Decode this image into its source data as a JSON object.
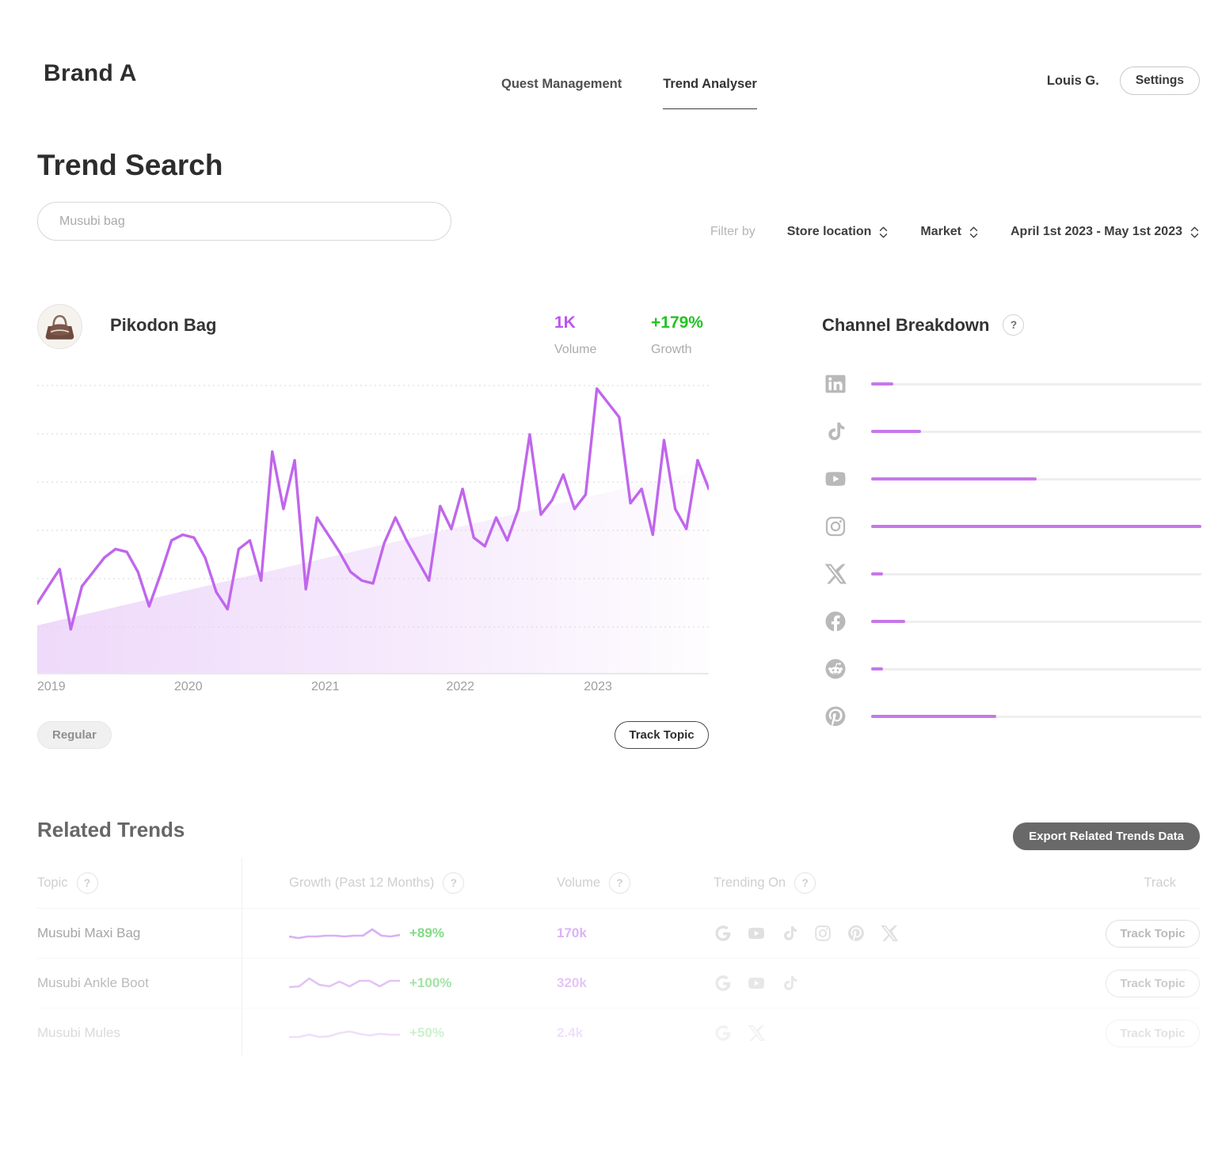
{
  "ui": {
    "help_glyph": "?"
  },
  "colors": {
    "line": "#c066ec",
    "area_left": "#e9cdf8",
    "bar_fill": "#c778e8",
    "stat_volume": "#bb54f0",
    "stat_growth": "#22c522",
    "row_growth": "#82db85",
    "row_volume": "#dcb2f6",
    "sparkline": "#d9b0f4"
  },
  "header": {
    "brand": "Brand A",
    "nav": [
      {
        "label": "Quest Management",
        "active": false
      },
      {
        "label": "Trend Analyser",
        "active": true
      }
    ],
    "user": "Louis G.",
    "settings_label": "Settings"
  },
  "search": {
    "title": "Trend Search",
    "placeholder": "Musubi bag",
    "filter_label": "Filter by",
    "filters": [
      "Store location",
      "Market",
      "April 1st 2023 - May 1st 2023"
    ]
  },
  "trend_card": {
    "name": "Pikodon Bag",
    "volume_value": "1K",
    "volume_label": "Volume",
    "growth_value": "+179%",
    "growth_label": "Growth",
    "badge": "Regular",
    "track_button": "Track Topic"
  },
  "chart_data": {
    "type": "line",
    "title": "Pikodon Bag search volume trend",
    "x_ticks": [
      "2019",
      "2020",
      "2021",
      "2022",
      "2023"
    ],
    "x_tick_pct": [
      2.1,
      22.5,
      42.9,
      63.0,
      83.5
    ],
    "ylim": [
      0,
      100
    ],
    "grid": "dotted-horizontal",
    "values": [
      22,
      28,
      34,
      13,
      28,
      33,
      38,
      41,
      40,
      33,
      21,
      32,
      44,
      46,
      45,
      38,
      26,
      20,
      41,
      44,
      30,
      75,
      55,
      72,
      27,
      52,
      46,
      40,
      33,
      30,
      29,
      43,
      52,
      44,
      37,
      30,
      56,
      48,
      62,
      45,
      42,
      52,
      44,
      55,
      81,
      53,
      58,
      67,
      55,
      60,
      97,
      92,
      87,
      57,
      62,
      46,
      79,
      55,
      48,
      72,
      62
    ]
  },
  "channel_breakdown": {
    "title": "Channel Breakdown",
    "channels": [
      {
        "name": "linkedin",
        "value_pct": 6.7
      },
      {
        "name": "tiktok",
        "value_pct": 15.2
      },
      {
        "name": "youtube",
        "value_pct": 50.0
      },
      {
        "name": "instagram",
        "value_pct": 100.0
      },
      {
        "name": "x",
        "value_pct": 3.6
      },
      {
        "name": "facebook",
        "value_pct": 10.4
      },
      {
        "name": "reddit",
        "value_pct": 3.6
      },
      {
        "name": "pinterest",
        "value_pct": 38.0
      }
    ]
  },
  "related_trends": {
    "title": "Related Trends",
    "export_button": "Export Related Trends Data",
    "columns": [
      {
        "label": "Topic",
        "help": true
      },
      {
        "label": "Growth (Past 12 Months)",
        "help": true
      },
      {
        "label": "Volume",
        "help": true
      },
      {
        "label": "Trending On",
        "help": true
      },
      {
        "label": "Track",
        "help": false
      }
    ],
    "rows": [
      {
        "topic": "Musubi Maxi Bag",
        "growth": "+89%",
        "volume": "170k",
        "trending_on": [
          "google",
          "youtube",
          "tiktok",
          "instagram",
          "pinterest",
          "x"
        ],
        "track_button": "Track Topic",
        "sparkline": [
          15,
          17,
          15,
          15,
          14,
          14,
          15,
          14,
          14,
          6,
          14,
          15,
          13
        ]
      },
      {
        "topic": "Musubi Ankle Boot",
        "growth": "+100%",
        "volume": "320k",
        "trending_on": [
          "google",
          "youtube",
          "tiktok"
        ],
        "track_button": "Track Topic",
        "sparkline": [
          16,
          15,
          5,
          13,
          15,
          9,
          15,
          8,
          8,
          15,
          8,
          8
        ]
      },
      {
        "topic": "Musubi Mules",
        "growth": "+50%",
        "volume": "2.4k",
        "trending_on": [
          "google",
          "x"
        ],
        "track_button": "Track Topic",
        "sparkline": [
          16,
          16,
          13,
          16,
          15,
          11,
          9,
          12,
          14,
          12,
          13,
          13
        ]
      }
    ]
  }
}
